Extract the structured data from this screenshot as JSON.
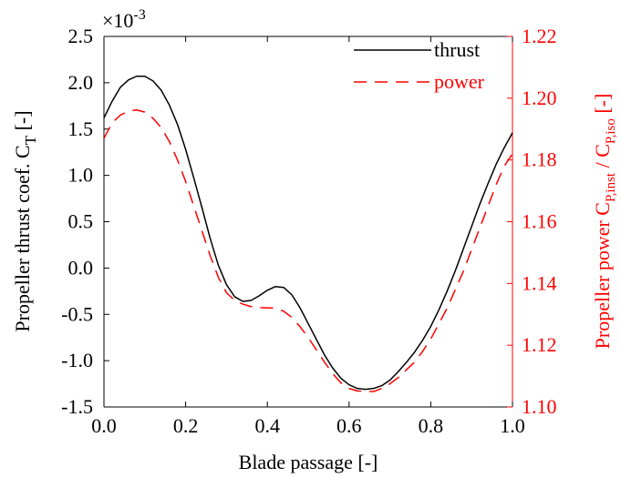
{
  "chart_data": {
    "type": "line",
    "xlabel": "Blade passage [-]",
    "ylabel_left": {
      "main": "Propeller thrust coef. C",
      "sub": "T",
      "unit": " [-]"
    },
    "ylabel_right": {
      "prefix": "Propeller power C",
      "sub1": "P,inst",
      "mid": " / C",
      "sub2": "P,iso",
      "unit": " [-]"
    },
    "multiplier": {
      "prefix": "×10",
      "exponent": "-3"
    },
    "xlim": [
      0.0,
      1.0
    ],
    "ylim_left": [
      -1.5,
      2.5
    ],
    "ylim_right": [
      1.1,
      1.22
    ],
    "x_ticks": [
      "0.0",
      "0.2",
      "0.4",
      "0.6",
      "0.8",
      "1.0"
    ],
    "y_left_ticks": [
      "2.5",
      "2.0",
      "1.5",
      "1.0",
      "0.5",
      "0.0",
      "-0.5",
      "-1.0",
      "-1.5"
    ],
    "y_right_ticks": [
      "1.22",
      "1.20",
      "1.18",
      "1.16",
      "1.14",
      "1.12",
      "1.10"
    ],
    "colors": {
      "thrust": "#000000",
      "power": "#ff0000",
      "axis_left": "#000000",
      "axis_right": "#ff0000"
    },
    "legend_position": "top-right",
    "series": [
      {
        "name": "thrust",
        "axis": "left",
        "style": "solid",
        "x": [
          0.0,
          0.02,
          0.04,
          0.06,
          0.08,
          0.1,
          0.12,
          0.14,
          0.16,
          0.18,
          0.2,
          0.22,
          0.24,
          0.26,
          0.28,
          0.3,
          0.32,
          0.34,
          0.36,
          0.38,
          0.4,
          0.42,
          0.44,
          0.46,
          0.48,
          0.5,
          0.52,
          0.54,
          0.56,
          0.58,
          0.6,
          0.62,
          0.64,
          0.66,
          0.68,
          0.7,
          0.72,
          0.74,
          0.76,
          0.78,
          0.8,
          0.82,
          0.84,
          0.86,
          0.88,
          0.9,
          0.92,
          0.94,
          0.96,
          0.98,
          1.0
        ],
        "y": [
          1.62,
          1.8,
          1.95,
          2.03,
          2.07,
          2.07,
          2.02,
          1.92,
          1.76,
          1.55,
          1.28,
          0.97,
          0.65,
          0.32,
          0.03,
          -0.18,
          -0.31,
          -0.36,
          -0.35,
          -0.3,
          -0.24,
          -0.2,
          -0.21,
          -0.29,
          -0.43,
          -0.6,
          -0.77,
          -0.94,
          -1.08,
          -1.19,
          -1.26,
          -1.3,
          -1.31,
          -1.3,
          -1.27,
          -1.21,
          -1.12,
          -1.02,
          -0.91,
          -0.78,
          -0.63,
          -0.45,
          -0.25,
          -0.03,
          0.21,
          0.45,
          0.69,
          0.91,
          1.12,
          1.3,
          1.46
        ]
      },
      {
        "name": "power",
        "axis": "right",
        "style": "dashed",
        "x": [
          0.0,
          0.02,
          0.04,
          0.06,
          0.08,
          0.1,
          0.12,
          0.14,
          0.16,
          0.18,
          0.2,
          0.22,
          0.24,
          0.26,
          0.28,
          0.3,
          0.32,
          0.34,
          0.36,
          0.38,
          0.4,
          0.42,
          0.44,
          0.46,
          0.48,
          0.5,
          0.52,
          0.54,
          0.56,
          0.58,
          0.6,
          0.62,
          0.64,
          0.66,
          0.68,
          0.7,
          0.72,
          0.74,
          0.76,
          0.78,
          0.8,
          0.82,
          0.84,
          0.86,
          0.88,
          0.9,
          0.92,
          0.94,
          0.96,
          0.98,
          1.0
        ],
        "y": [
          1.187,
          1.192,
          1.1945,
          1.1958,
          1.1962,
          1.1955,
          1.1935,
          1.1905,
          1.186,
          1.18,
          1.173,
          1.165,
          1.157,
          1.149,
          1.142,
          1.137,
          1.1345,
          1.1333,
          1.1325,
          1.1322,
          1.1321,
          1.132,
          1.131,
          1.129,
          1.126,
          1.1225,
          1.1185,
          1.1145,
          1.1108,
          1.1078,
          1.106,
          1.1052,
          1.105,
          1.105,
          1.106,
          1.1075,
          1.1095,
          1.112,
          1.1145,
          1.118,
          1.122,
          1.127,
          1.132,
          1.138,
          1.144,
          1.151,
          1.158,
          1.165,
          1.172,
          1.178,
          1.182
        ]
      }
    ]
  }
}
